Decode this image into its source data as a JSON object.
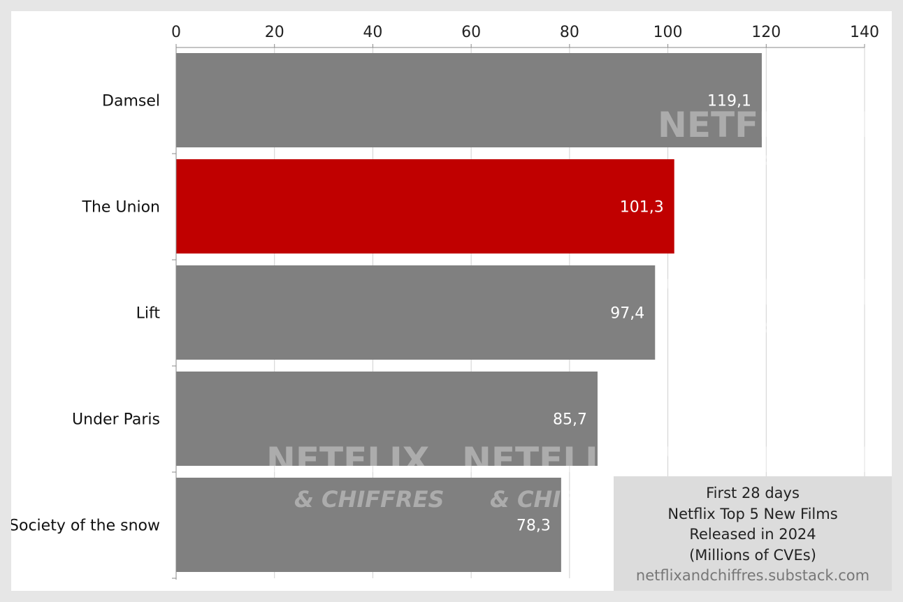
{
  "chart_data": {
    "type": "bar",
    "orientation": "horizontal",
    "categories": [
      "Damsel",
      "The Union",
      "Lift",
      "Under Paris",
      "Society of the snow"
    ],
    "values": [
      119.1,
      101.3,
      97.4,
      85.7,
      78.3
    ],
    "data_labels": [
      "119,1",
      "101,3",
      "97,4",
      "85,7",
      "78,3"
    ],
    "xlim": [
      0,
      140
    ],
    "x_ticks": [
      0,
      20,
      40,
      60,
      80,
      100,
      120,
      140
    ],
    "x_axis_position": "top",
    "grid": true,
    "colors": {
      "default_bar": "#808080",
      "highlight_bar": "#c00000",
      "grid": "#d0d0d0",
      "label": "#ffffff"
    },
    "highlight": "The Union"
  },
  "caption": {
    "lines": [
      "First 28 days",
      "Netflix Top 5 New Films",
      "Released in 2024",
      "(Millions of CVEs)"
    ],
    "source": "netflixandchiffres.substack.com"
  },
  "watermark": {
    "line1": "NETFLIX",
    "line2": "& CHIFFRES"
  }
}
